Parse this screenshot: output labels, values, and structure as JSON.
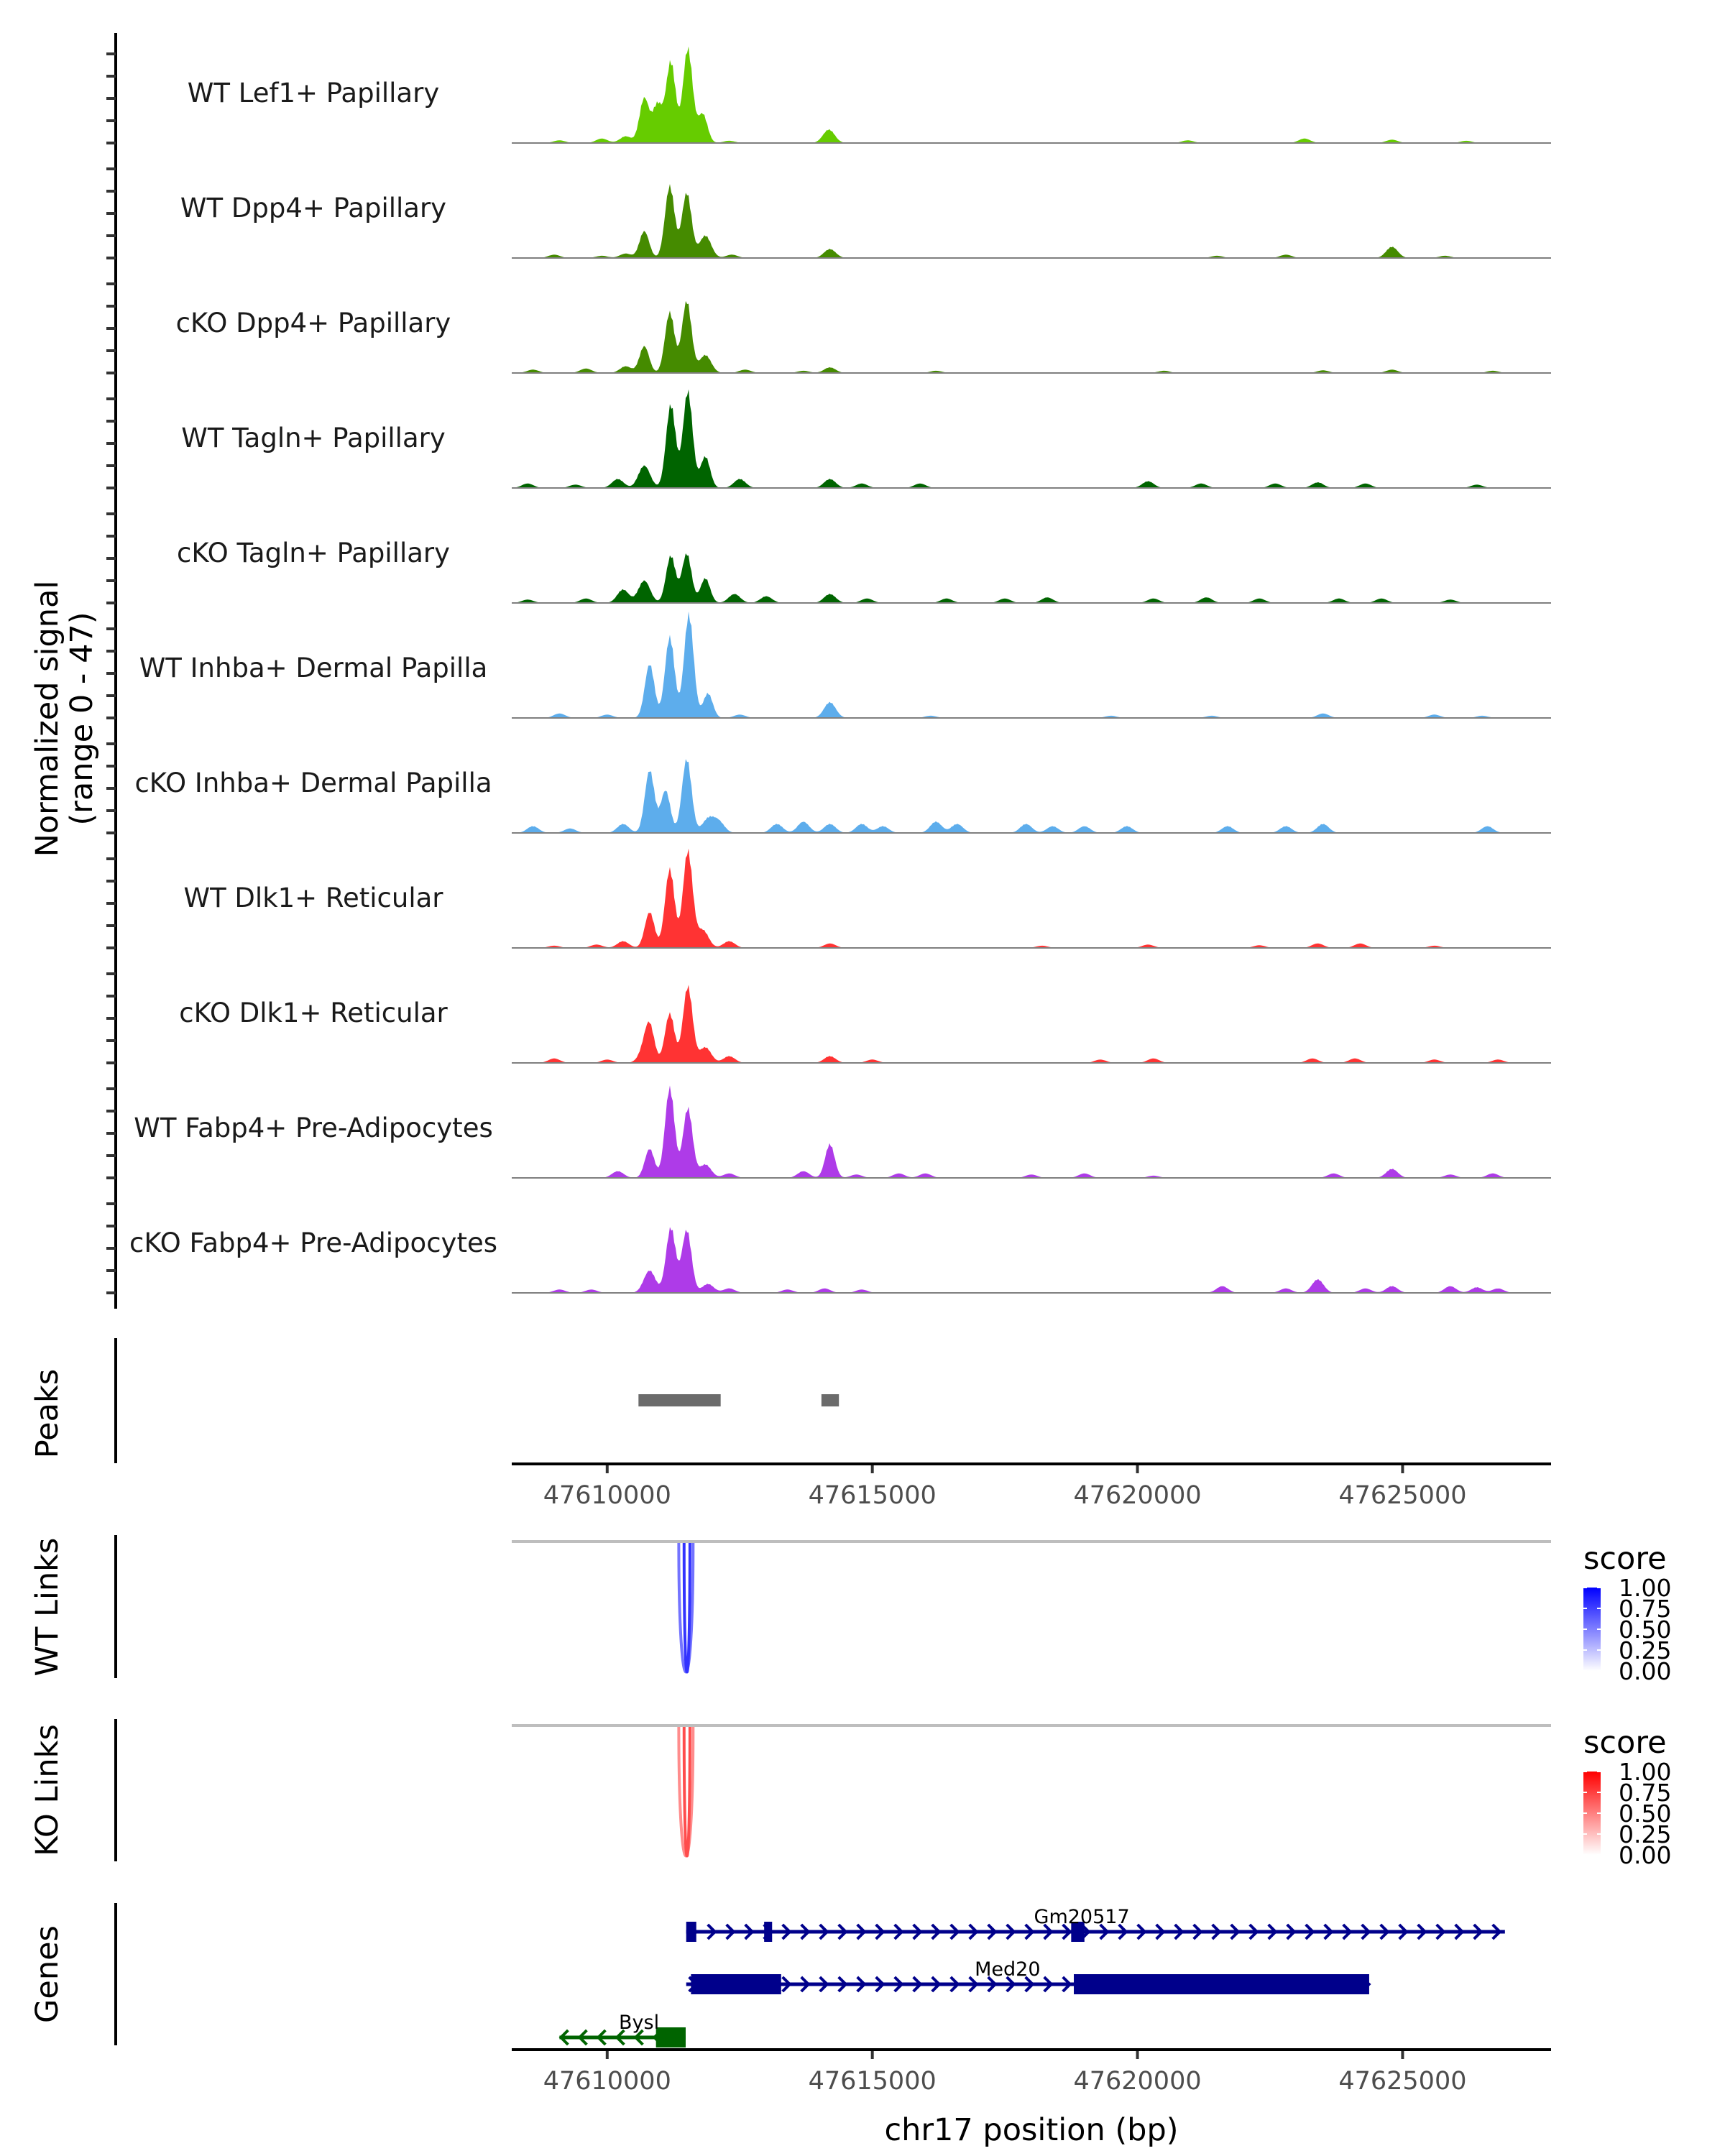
{
  "chart_data": {
    "type": "area",
    "title": "",
    "region": {
      "chrom": "chr17",
      "start": 47608200,
      "end": 47627800
    },
    "xlabel": "chr17 position (bp)",
    "xticks": [
      47610000,
      47615000,
      47620000,
      47625000
    ],
    "xtick_labels": [
      "47610000",
      "47615000",
      "47620000",
      "47625000"
    ],
    "signal_panel": {
      "ylabel_line1": "Normalized signal",
      "ylabel_line2": "(range 0 - 47)",
      "ylim": [
        0,
        47
      ],
      "tracks": [
        {
          "name": "WT Lef1+ Papillary",
          "color": "#66CC00",
          "peaks": [
            [
              47609100,
              1.2
            ],
            [
              47609900,
              2
            ],
            [
              47610350,
              3
            ],
            [
              47610700,
              20
            ],
            [
              47610950,
              17
            ],
            [
              47611200,
              36
            ],
            [
              47611520,
              42
            ],
            [
              47611800,
              13
            ],
            [
              47612300,
              1
            ],
            [
              47614180,
              6
            ],
            [
              47620950,
              1.2
            ],
            [
              47623150,
              2
            ],
            [
              47624800,
              1.5
            ],
            [
              47626200,
              1
            ]
          ]
        },
        {
          "name": "WT Dpp4+ Papillary",
          "color": "#458B00",
          "peaks": [
            [
              47609000,
              1.5
            ],
            [
              47609900,
              1
            ],
            [
              47610350,
              2
            ],
            [
              47610700,
              12
            ],
            [
              47611180,
              32
            ],
            [
              47611500,
              29
            ],
            [
              47611850,
              10
            ],
            [
              47612350,
              1.5
            ],
            [
              47614200,
              4
            ],
            [
              47621500,
              1
            ],
            [
              47622800,
              1.5
            ],
            [
              47624800,
              5
            ],
            [
              47625800,
              1
            ]
          ]
        },
        {
          "name": "cKO Dpp4+ Papillary",
          "color": "#458B00",
          "peaks": [
            [
              47608600,
              1.5
            ],
            [
              47609600,
              2
            ],
            [
              47610350,
              3
            ],
            [
              47610700,
              12
            ],
            [
              47611180,
              27
            ],
            [
              47611500,
              32
            ],
            [
              47611850,
              8
            ],
            [
              47612600,
              1.5
            ],
            [
              47613700,
              1
            ],
            [
              47614200,
              2.5
            ],
            [
              47616200,
              1
            ],
            [
              47620500,
              1
            ],
            [
              47623500,
              1.2
            ],
            [
              47624800,
              1.5
            ],
            [
              47626700,
              1
            ]
          ]
        },
        {
          "name": "WT Tagln+ Papillary",
          "color": "#006400",
          "peaks": [
            [
              47608500,
              2
            ],
            [
              47609400,
              1.5
            ],
            [
              47610200,
              4
            ],
            [
              47610700,
              10
            ],
            [
              47611200,
              37
            ],
            [
              47611520,
              43
            ],
            [
              47611850,
              14
            ],
            [
              47612500,
              4
            ],
            [
              47614200,
              4
            ],
            [
              47614800,
              2
            ],
            [
              47615900,
              2
            ],
            [
              47620200,
              3
            ],
            [
              47621200,
              2
            ],
            [
              47622600,
              2
            ],
            [
              47623400,
              2.5
            ],
            [
              47624300,
              2
            ],
            [
              47626400,
              1.5
            ]
          ]
        },
        {
          "name": "cKO Tagln+ Papillary",
          "color": "#006400",
          "peaks": [
            [
              47608500,
              1.5
            ],
            [
              47609600,
              2
            ],
            [
              47610300,
              6
            ],
            [
              47610700,
              10
            ],
            [
              47611200,
              21
            ],
            [
              47611500,
              22
            ],
            [
              47611850,
              11
            ],
            [
              47612400,
              4
            ],
            [
              47613000,
              3
            ],
            [
              47614200,
              4
            ],
            [
              47614900,
              2
            ],
            [
              47616400,
              2
            ],
            [
              47617500,
              2
            ],
            [
              47618300,
              2.5
            ],
            [
              47620300,
              2
            ],
            [
              47621300,
              2.5
            ],
            [
              47622300,
              2
            ],
            [
              47623800,
              2
            ],
            [
              47624600,
              2
            ],
            [
              47625900,
              1.5
            ]
          ]
        },
        {
          "name": "WT Inhba+ Dermal Papilla",
          "color": "#5DADEC",
          "peaks": [
            [
              47609100,
              2
            ],
            [
              47610000,
              1.5
            ],
            [
              47610800,
              24
            ],
            [
              47611180,
              36
            ],
            [
              47611540,
              46
            ],
            [
              47611900,
              11
            ],
            [
              47612500,
              1.5
            ],
            [
              47614200,
              7
            ],
            [
              47616100,
              1
            ],
            [
              47619500,
              1
            ],
            [
              47621400,
              1
            ],
            [
              47623500,
              2
            ],
            [
              47625600,
              1.5
            ],
            [
              47626500,
              1
            ]
          ]
        },
        {
          "name": "cKO Inhba+ Dermal Papilla",
          "color": "#5DADEC",
          "peaks": [
            [
              47608600,
              3
            ],
            [
              47609300,
              2
            ],
            [
              47610300,
              4
            ],
            [
              47610800,
              28
            ],
            [
              47611100,
              19
            ],
            [
              47611500,
              33
            ],
            [
              47611900,
              6
            ],
            [
              47612100,
              5
            ],
            [
              47613200,
              4
            ],
            [
              47613700,
              5
            ],
            [
              47614200,
              4
            ],
            [
              47614800,
              4
            ],
            [
              47615200,
              3
            ],
            [
              47616200,
              5
            ],
            [
              47616600,
              4
            ],
            [
              47617900,
              4
            ],
            [
              47618400,
              3
            ],
            [
              47619000,
              3
            ],
            [
              47619800,
              3
            ],
            [
              47621700,
              3
            ],
            [
              47622800,
              3
            ],
            [
              47623500,
              4
            ],
            [
              47626600,
              3
            ]
          ]
        },
        {
          "name": "WT Dlk1+ Reticular",
          "color": "#FF3333",
          "peaks": [
            [
              47609000,
              1
            ],
            [
              47609800,
              1.5
            ],
            [
              47610300,
              3
            ],
            [
              47610800,
              16
            ],
            [
              47611180,
              35
            ],
            [
              47611520,
              43
            ],
            [
              47611800,
              8
            ],
            [
              47612300,
              3
            ],
            [
              47614200,
              2
            ],
            [
              47618200,
              1
            ],
            [
              47620200,
              1.5
            ],
            [
              47622300,
              1.2
            ],
            [
              47623400,
              2
            ],
            [
              47624200,
              2
            ],
            [
              47625600,
              1
            ]
          ]
        },
        {
          "name": "cKO Dlk1+ Reticular",
          "color": "#FF3333",
          "peaks": [
            [
              47609000,
              2
            ],
            [
              47610000,
              1.5
            ],
            [
              47610700,
              5
            ],
            [
              47610800,
              15
            ],
            [
              47611180,
              22
            ],
            [
              47611520,
              34
            ],
            [
              47611850,
              7
            ],
            [
              47612300,
              3
            ],
            [
              47614200,
              3
            ],
            [
              47615000,
              1.5
            ],
            [
              47619300,
              1.5
            ],
            [
              47620300,
              2
            ],
            [
              47623300,
              2
            ],
            [
              47624100,
              2
            ],
            [
              47625600,
              1.5
            ],
            [
              47626800,
              1.5
            ]
          ]
        },
        {
          "name": "WT Fabp4+ Pre-Adipocytes",
          "color": "#AE3BE8",
          "peaks": [
            [
              47610200,
              3
            ],
            [
              47610800,
              13
            ],
            [
              47611180,
              40
            ],
            [
              47611520,
              31
            ],
            [
              47611850,
              6
            ],
            [
              47612300,
              2
            ],
            [
              47613700,
              3
            ],
            [
              47614200,
              15
            ],
            [
              47614700,
              1.5
            ],
            [
              47615500,
              2
            ],
            [
              47616000,
              2
            ],
            [
              47618000,
              1.5
            ],
            [
              47619000,
              2
            ],
            [
              47620300,
              1
            ],
            [
              47623700,
              2
            ],
            [
              47624800,
              4
            ],
            [
              47625900,
              1.5
            ],
            [
              47626700,
              2
            ]
          ]
        },
        {
          "name": "cKO Fabp4+ Pre-Adipocytes",
          "color": "#AE3BE8",
          "peaks": [
            [
              47609100,
              1.5
            ],
            [
              47609700,
              1.5
            ],
            [
              47610800,
              10
            ],
            [
              47611200,
              29
            ],
            [
              47611500,
              28
            ],
            [
              47611900,
              4
            ],
            [
              47612300,
              2
            ],
            [
              47613400,
              1.5
            ],
            [
              47614100,
              2
            ],
            [
              47614800,
              1.5
            ],
            [
              47621600,
              3
            ],
            [
              47622800,
              2
            ],
            [
              47623400,
              6
            ],
            [
              47624300,
              2
            ],
            [
              47624800,
              3
            ],
            [
              47625900,
              3
            ],
            [
              47626400,
              2.5
            ],
            [
              47626800,
              2
            ]
          ]
        }
      ]
    },
    "peaks_panel": {
      "label": "Peaks",
      "color": "#6B6B6B",
      "regions": [
        [
          47610590,
          47612140
        ],
        [
          47614040,
          47614370
        ]
      ]
    },
    "links_panels": [
      {
        "label": "WT Links",
        "legend_title": "score",
        "color_low": "#FFFFFF",
        "color_high": "#0000FF",
        "legend_ticks": [
          "1.00",
          "0.75",
          "0.50",
          "0.25",
          "0.00"
        ],
        "links": [
          [
            47611350,
            47611620,
            0.55
          ],
          [
            47611450,
            47611560,
            0.8
          ]
        ]
      },
      {
        "label": "KO Links",
        "legend_title": "score",
        "color_low": "#FFFFFF",
        "color_high": "#FF0000",
        "legend_ticks": [
          "1.00",
          "0.75",
          "0.50",
          "0.25",
          "0.00"
        ],
        "links": [
          [
            47611350,
            47611620,
            0.45
          ],
          [
            47611450,
            47611560,
            0.7
          ]
        ]
      }
    ],
    "genes_panel": {
      "label": "Genes",
      "genes": [
        {
          "name": "Gm20517",
          "strand": "+",
          "start": 47611490,
          "end": 47626930,
          "color": "#00008B",
          "exons": [
            [
              47611490,
              47611680
            ],
            [
              47612960,
              47613110
            ],
            [
              47618750,
              47619000
            ]
          ]
        },
        {
          "name": "Med20",
          "strand": "+",
          "start": 47611490,
          "end": 47624370,
          "color": "#00008B",
          "exons": [
            [
              47611580,
              47613280
            ],
            [
              47618800,
              47624370
            ]
          ]
        },
        {
          "name": "Bysl",
          "strand": "-",
          "start": 47609100,
          "end": 47611480,
          "color": "#006400",
          "exons": [
            [
              47610920,
              47611480
            ]
          ]
        }
      ]
    }
  }
}
